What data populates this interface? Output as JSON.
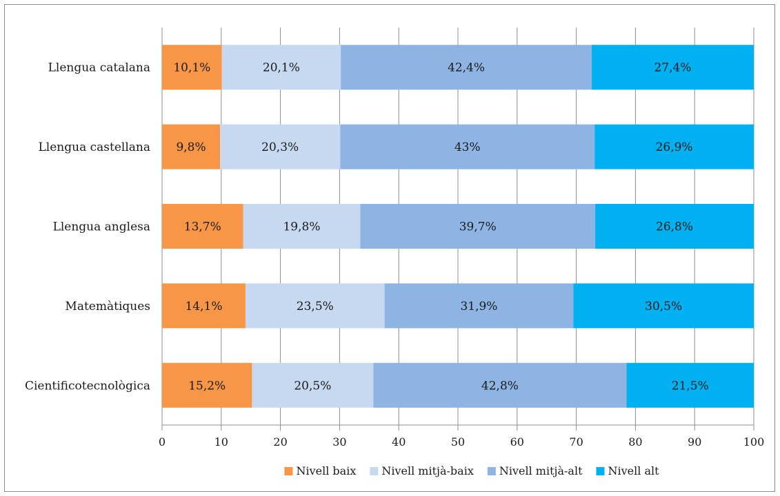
{
  "chart_data": {
    "type": "bar",
    "orientation": "horizontal",
    "stacked": true,
    "title": "",
    "xlabel": "",
    "ylabel": "",
    "xlim": [
      0,
      100
    ],
    "xticks": [
      0,
      10,
      20,
      30,
      40,
      50,
      60,
      70,
      80,
      90,
      100
    ],
    "grid": "vertical",
    "legend_position": "bottom",
    "categories": [
      "Llengua catalana",
      "Llengua castellana",
      "Llengua anglesa",
      "Matemàtiques",
      "Cientificotecnològica"
    ],
    "series": [
      {
        "name": "Nivell baix",
        "color": "#F79646",
        "values": [
          10.1,
          9.8,
          13.7,
          14.1,
          15.2
        ],
        "labels": [
          "10,1%",
          "9,8%",
          "13,7%",
          "14,1%",
          "15,2%"
        ]
      },
      {
        "name": "Nivell mitjà-baix",
        "color": "#C6D9F1",
        "values": [
          20.1,
          20.3,
          19.8,
          23.5,
          20.5
        ],
        "labels": [
          "20,1%",
          "20,3%",
          "19,8%",
          "23,5%",
          "20,5%"
        ]
      },
      {
        "name": "Nivell mitjà-alt",
        "color": "#8EB4E3",
        "values": [
          42.4,
          43,
          39.7,
          31.9,
          42.8
        ],
        "labels": [
          "42,4%",
          "43%",
          "39,7%",
          "31,9%",
          "42,8%"
        ]
      },
      {
        "name": "Nivell alt",
        "color": "#00B0F0",
        "values": [
          27.4,
          26.9,
          26.8,
          30.5,
          21.5
        ],
        "labels": [
          "27,4%",
          "26,9%",
          "26,8%",
          "30,5%",
          "21,5%"
        ]
      }
    ]
  }
}
